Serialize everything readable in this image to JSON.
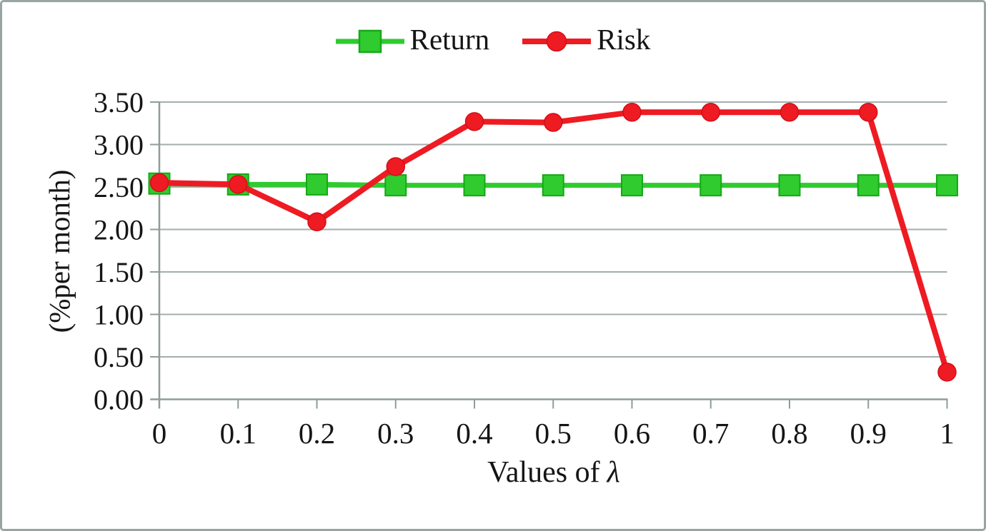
{
  "colors": {
    "return_green": "#2fcb2f",
    "return_green_edge": "#17a817",
    "risk_red": "#ee1b23",
    "grid": "#a4aeae",
    "axis": "#8f9b9c",
    "text": "#151515",
    "figure_border": "#99a4a5",
    "background": "#ffffff"
  },
  "chart_data": {
    "type": "line",
    "title": "",
    "categories": [
      "0",
      "0.1",
      "0.2",
      "0.3",
      "0.4",
      "0.5",
      "0.6",
      "0.7",
      "0.8",
      "0.9",
      "1"
    ],
    "series": [
      {
        "name": "Return",
        "marker": "square",
        "color": "#2fcb2f",
        "marker_edge": "#17a817",
        "values": [
          2.54,
          2.53,
          2.53,
          2.52,
          2.52,
          2.52,
          2.52,
          2.52,
          2.52,
          2.52,
          2.52
        ]
      },
      {
        "name": "Risk",
        "marker": "circle",
        "color": "#ee1b23",
        "marker_edge": "#d10f16",
        "values": [
          2.55,
          2.53,
          2.09,
          2.74,
          3.27,
          3.26,
          3.38,
          3.38,
          3.38,
          3.38,
          0.32
        ]
      }
    ],
    "xlabel": "Values of λ",
    "xlabel_parts": {
      "prefix": "Values of",
      "symbol": "λ"
    },
    "ylabel": "(%per month)",
    "ylim": [
      0,
      3.5
    ],
    "ytick_step": 0.5,
    "yticks": [
      "0.00",
      "0.50",
      "1.00",
      "1.50",
      "2.00",
      "2.50",
      "3.00",
      "3.50"
    ],
    "grid": "horizontal-only",
    "legend_position": "top-center"
  }
}
